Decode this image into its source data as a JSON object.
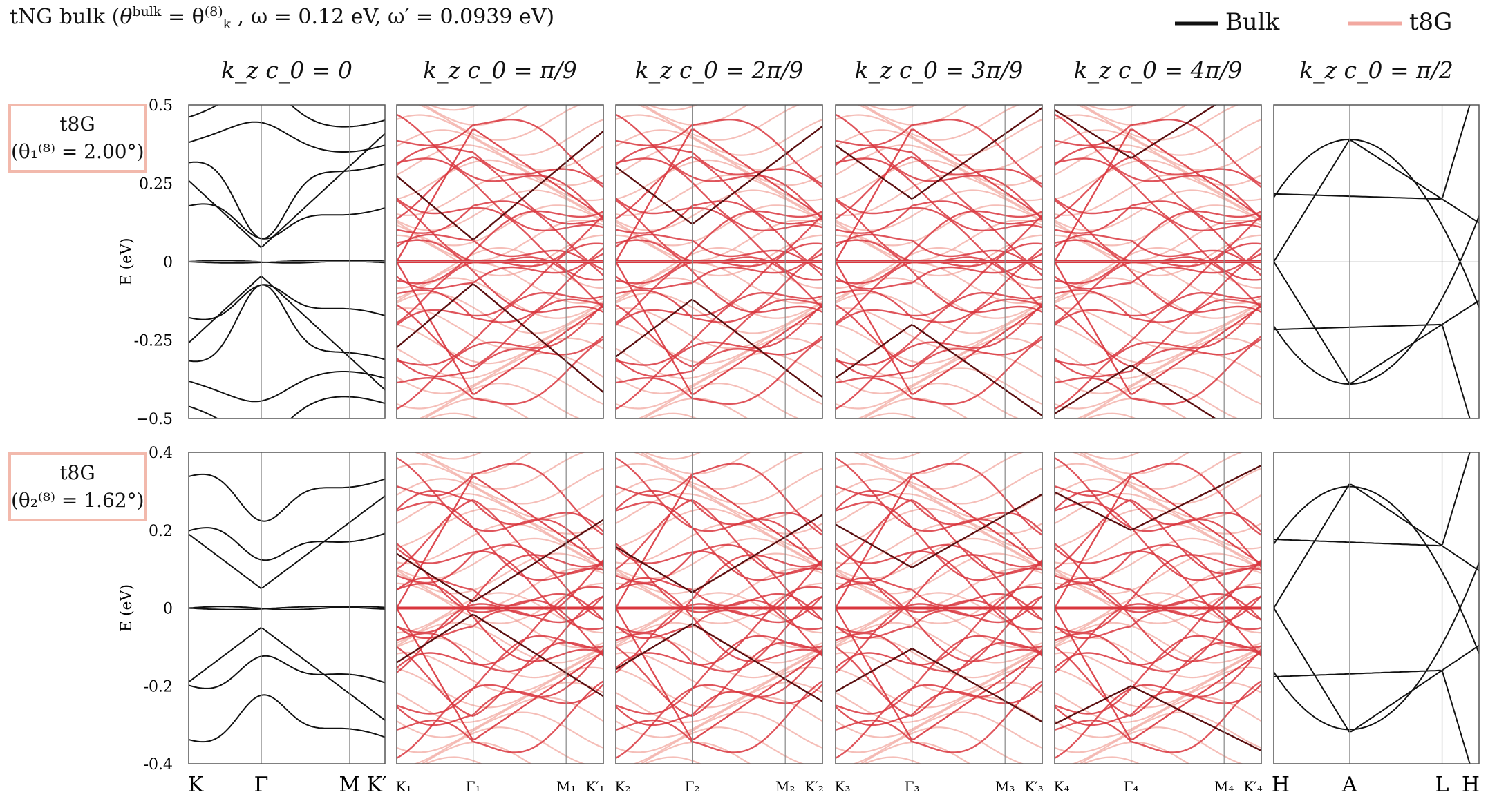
{
  "title": {
    "prefix": "tNG bulk (",
    "theta": "θ",
    "theta_sup": "bulk",
    "eq": " = θ",
    "theta_k_sup": "(8)",
    "theta_k_sub": "k",
    "rest": " ,  ω = 0.12 eV,  ω′ = 0.0939 eV)"
  },
  "legend": [
    {
      "label": "Bulk",
      "color": "#111111"
    },
    {
      "label": "t8G",
      "color": "#f2a8a0"
    }
  ],
  "column_headers": [
    "k_z c_0 = 0",
    "k_z c_0 = π/9",
    "k_z c_0 = 2π/9",
    "k_z c_0 = 3π/9",
    "k_z c_0 = 4π/9",
    "k_z c_0 = π/2"
  ],
  "row_labels": [
    {
      "name": "t8G",
      "angle_label": "(θ₁⁽⁸⁾ = 2.00°)"
    },
    {
      "name": "t8G",
      "angle_label": "(θ₂⁽⁸⁾ = 1.62°)"
    }
  ],
  "colors": {
    "bulk": "#111111",
    "t8g_strong": "#d9363e",
    "t8g_light": "#f2a8a0",
    "t8g_dark": "#5a0f10",
    "axis": "#555555",
    "zero_line": "#cccccc"
  },
  "chart_data": [
    {
      "type": "line",
      "row": 1,
      "ylabel": "E (eV)",
      "ylim": [
        -0.5,
        0.5
      ],
      "yticks": [
        0.5,
        0.25,
        0,
        -0.25,
        -0.5
      ],
      "ytick_labels": [
        "0.5",
        "0.25",
        "0",
        "-0.25",
        "−0.5"
      ],
      "panels": [
        {
          "header": "k_z c_0 = 0",
          "xticks": [
            "K",
            "Γ",
            "M",
            "K′"
          ],
          "style": "bulk",
          "series_groups": [
            {
              "name": "",
              "color": "bulk",
              "fn": "cone",
              "v": 0.045,
              "slope": 0.55
            },
            {
              "name": "",
              "color": "bulk",
              "fn": "band",
              "level": 0.32,
              "shape": "dip",
              "amp": 0.27
            },
            {
              "name": "",
              "color": "bulk",
              "fn": "band",
              "level": 0.18,
              "shape": "dip",
              "amp": 0.13
            },
            {
              "name": "",
              "color": "bulk",
              "fn": "band",
              "level": 0.46,
              "shape": "bump",
              "amp": 0.08
            },
            {
              "name": "",
              "color": "bulk",
              "fn": "band",
              "level": 0.38,
              "shape": "bump",
              "amp": 0.04
            }
          ]
        },
        {
          "header": "k_z c_0 = π/9",
          "xticks": [
            "K₁",
            "Γ₁",
            "M₁",
            "K′₁"
          ],
          "style": "mixed",
          "series_groups": [
            {
              "name": "",
              "color": "t8g",
              "fn": "cone",
              "v": 0.07,
              "slope": 0.5
            }
          ]
        },
        {
          "header": "k_z c_0 = 2π/9",
          "xticks": [
            "K₂",
            "Γ₂",
            "M₂",
            "K′₂"
          ],
          "style": "mixed",
          "series_groups": [
            {
              "name": "",
              "color": "t8g",
              "fn": "cone",
              "v": 0.12,
              "slope": 0.45
            }
          ]
        },
        {
          "header": "k_z c_0 = 3π/9",
          "xticks": [
            "K₃",
            "Γ₃",
            "M₃",
            "K′₃"
          ],
          "style": "mixed",
          "series_groups": [
            {
              "name": "",
              "color": "t8g",
              "fn": "cone",
              "v": 0.2,
              "slope": 0.42
            }
          ]
        },
        {
          "header": "k_z c_0 = 4π/9",
          "xticks": [
            "K₄",
            "Γ₄",
            "M₄",
            "K′₄"
          ],
          "style": "mixed",
          "series_groups": [
            {
              "name": "",
              "color": "t8g",
              "fn": "cone",
              "v": 0.33,
              "slope": 0.38
            }
          ]
        },
        {
          "header": "k_z c_0 = π/2",
          "xticks": [
            "H",
            "A",
            "L",
            "H"
          ],
          "style": "bulk_only",
          "series_groups": [
            {
              "name": "",
              "color": "bulk",
              "fn": "vcone",
              "apex": 0.39
            },
            {
              "name": "",
              "color": "bulk",
              "fn": "dirac_sides",
              "v": 0.2
            }
          ]
        }
      ]
    },
    {
      "type": "line",
      "row": 2,
      "ylabel": "E (eV)",
      "ylim": [
        -0.4,
        0.4
      ],
      "yticks": [
        0.4,
        0.2,
        0,
        -0.2,
        -0.4
      ],
      "ytick_labels": [
        "0.4",
        "0.2",
        "0",
        "-0.2",
        "-0.4"
      ],
      "panels": [
        {
          "header": "k_z c_0 = 0",
          "xticks": [
            "K",
            "Γ",
            "M",
            "K′"
          ],
          "style": "bulk",
          "series_groups": [
            {
              "name": "",
              "color": "bulk",
              "fn": "cone",
              "v": 0.05,
              "slope": 0.45
            },
            {
              "name": "",
              "color": "bulk",
              "fn": "band",
              "level": 0.34,
              "shape": "dip",
              "amp": 0.14
            },
            {
              "name": "",
              "color": "bulk",
              "fn": "band",
              "level": 0.2,
              "shape": "dip",
              "amp": 0.1
            }
          ]
        },
        {
          "header": "k_z c_0 = π/9",
          "xticks": [
            "K₁",
            "Γ₁",
            "M₁",
            "K′₁"
          ],
          "style": "mixed",
          "series_groups": [
            {
              "name": "",
              "color": "t8g",
              "fn": "cone",
              "v": 0.02,
              "slope": 0.38
            }
          ]
        },
        {
          "header": "k_z c_0 = 2π/9",
          "xticks": [
            "K₂",
            "Γ₂",
            "M₂",
            "K′₂"
          ],
          "style": "mixed",
          "series_groups": [
            {
              "name": "",
              "color": "t8g",
              "fn": "cone",
              "v": 0.05,
              "slope": 0.36
            }
          ]
        },
        {
          "header": "k_z c_0 = 3π/9",
          "xticks": [
            "K₃",
            "Γ₃",
            "M₃",
            "K′₃"
          ],
          "style": "mixed",
          "series_groups": [
            {
              "name": "",
              "color": "t8g",
              "fn": "cone",
              "v": 0.13,
              "slope": 0.34
            }
          ]
        },
        {
          "header": "k_z c_0 = 4π/9",
          "xticks": [
            "K₄",
            "Γ₄",
            "M₄",
            "K′₄"
          ],
          "style": "mixed",
          "series_groups": [
            {
              "name": "",
              "color": "t8g",
              "fn": "cone",
              "v": 0.25,
              "slope": 0.3
            }
          ]
        },
        {
          "header": "k_z c_0 = π/2",
          "xticks": [
            "H",
            "A",
            "L",
            "H"
          ],
          "style": "bulk_only",
          "series_groups": [
            {
              "name": "",
              "color": "bulk",
              "fn": "vcone",
              "apex": 0.32
            },
            {
              "name": "",
              "color": "bulk",
              "fn": "dirac_sides",
              "v": 0.16
            }
          ]
        }
      ]
    }
  ]
}
